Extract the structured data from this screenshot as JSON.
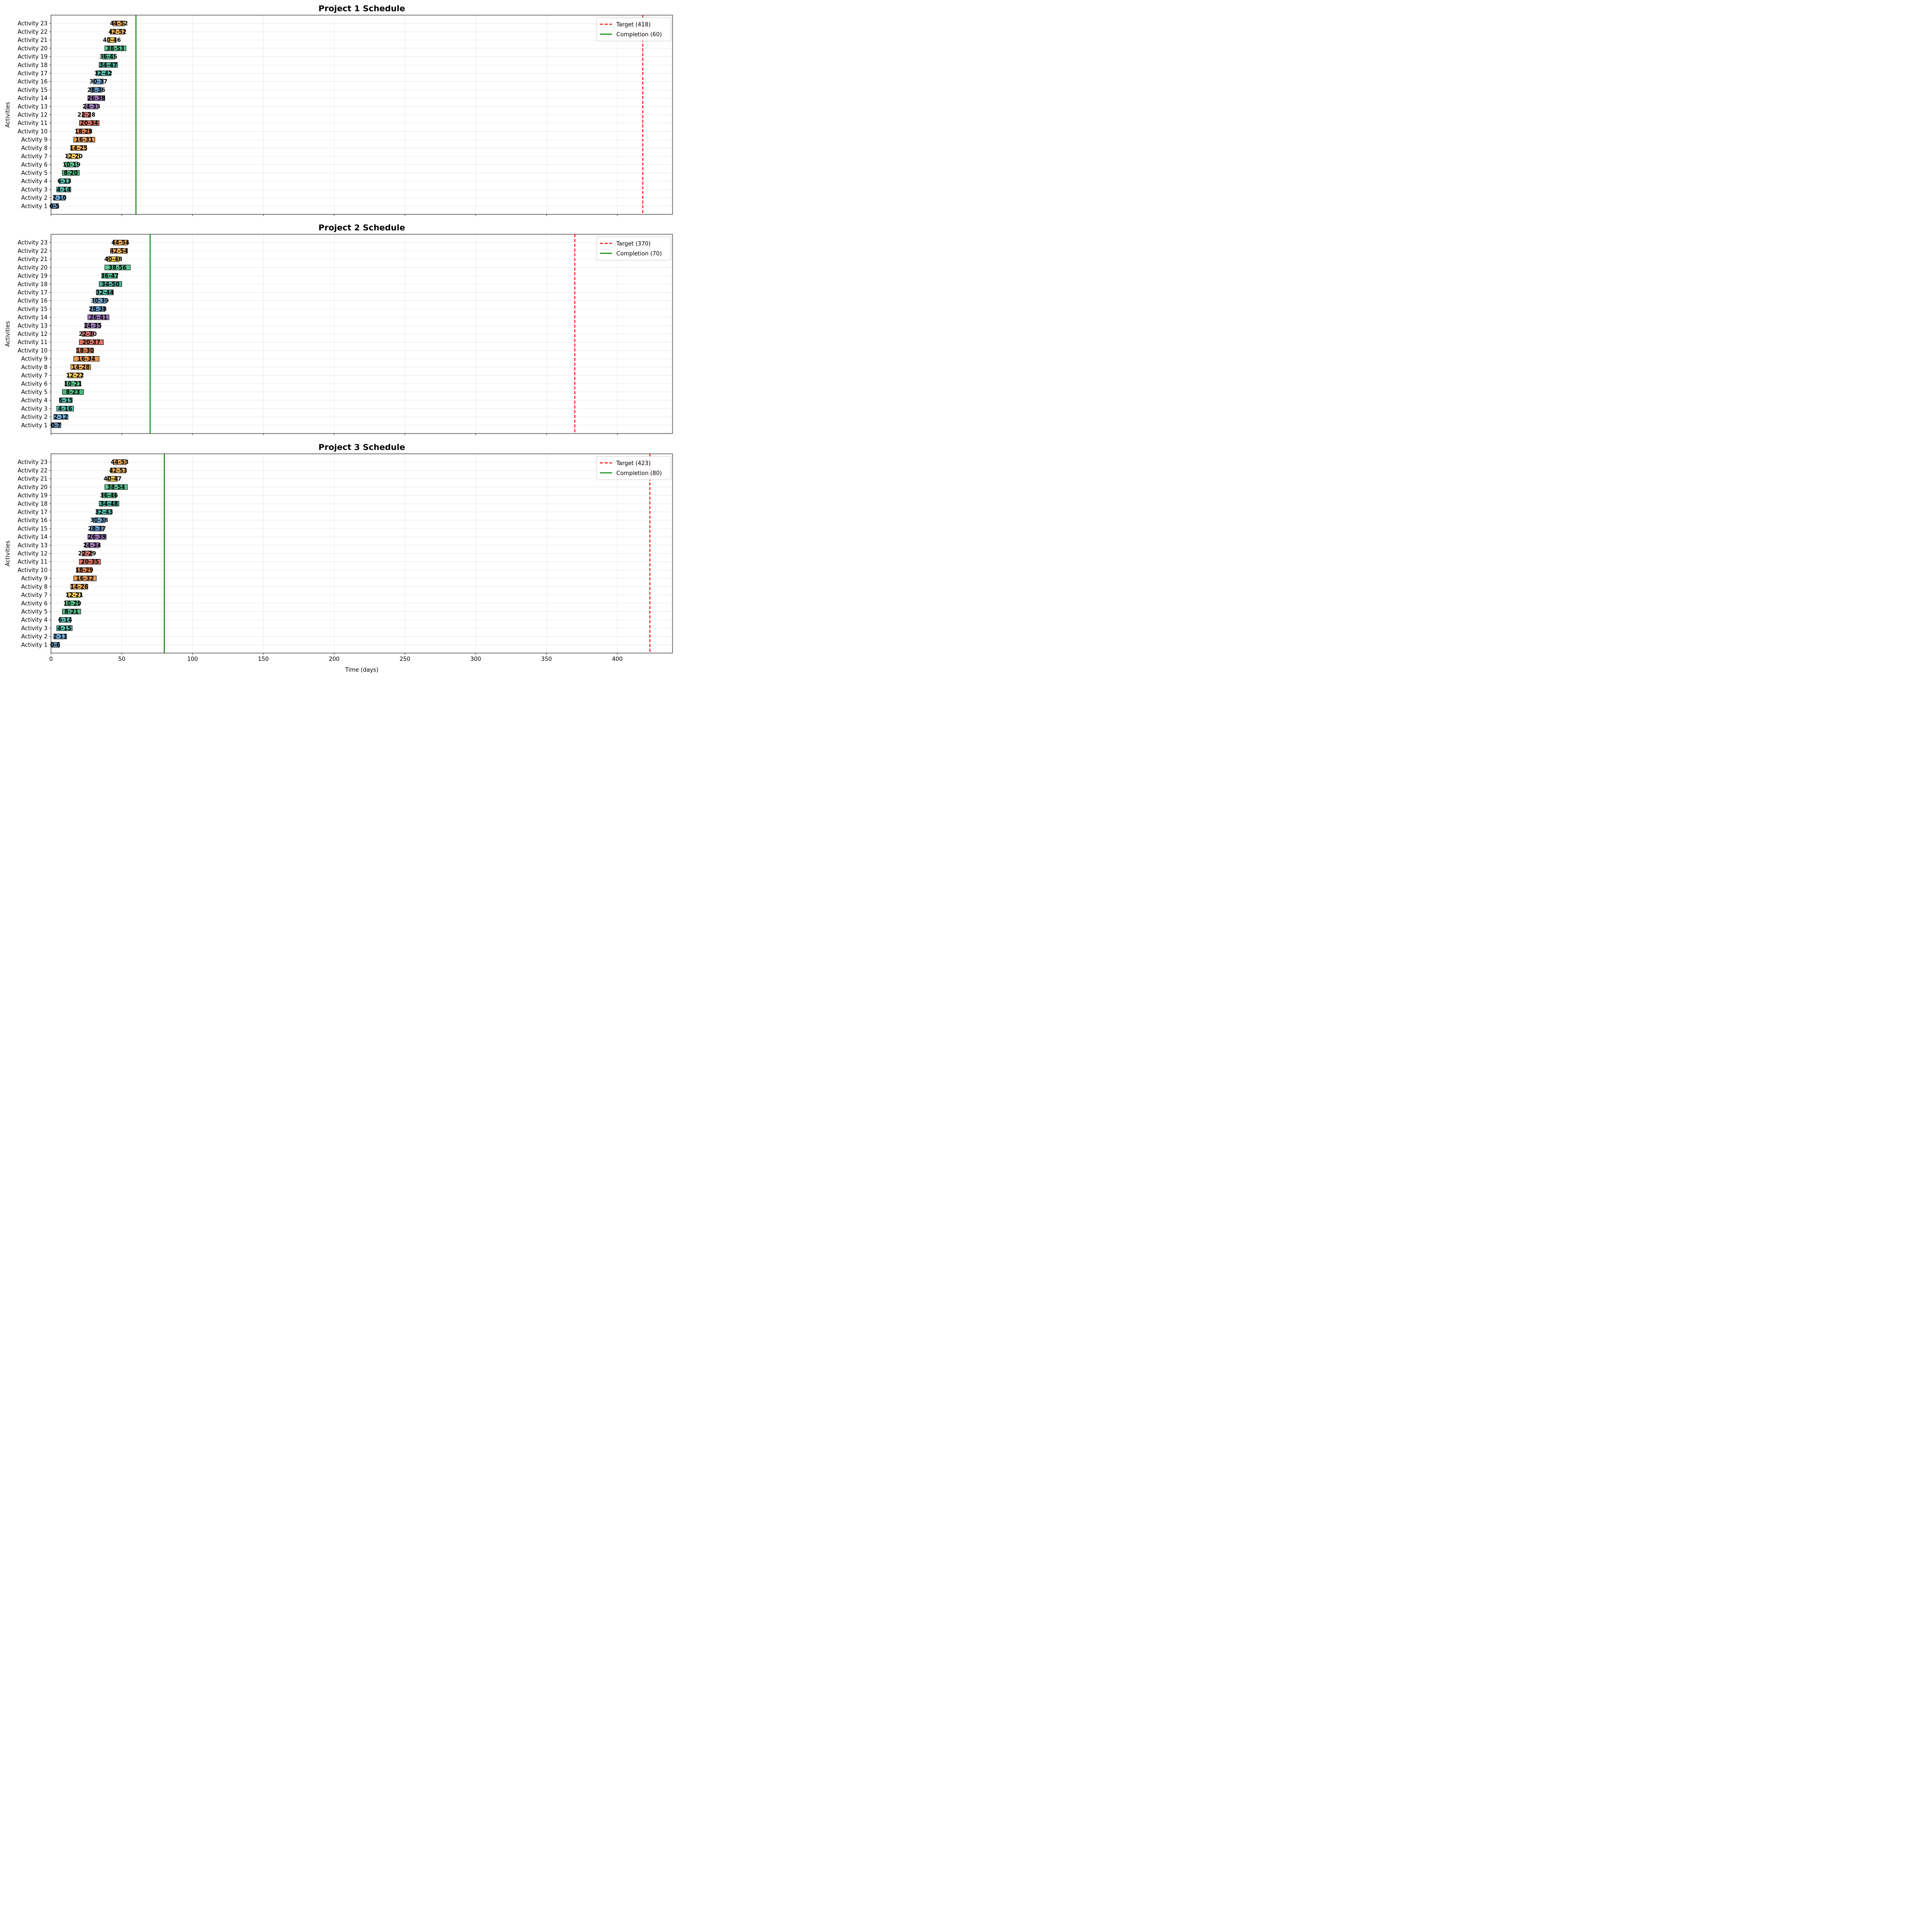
{
  "chart_data": {
    "type": "gantt",
    "xlabel": "Time (days)",
    "ylabel": "Activities",
    "xlim": [
      0,
      439
    ],
    "xticks": [
      0,
      50,
      100,
      150,
      200,
      250,
      300,
      350,
      400
    ],
    "grid": true,
    "legend_placement": "top-right",
    "activity_colors": [
      "#4e79a7",
      "#5aa1d8",
      "#36b59e",
      "#36b59e",
      "#2fae6b",
      "#3fbf80",
      "#f5c542",
      "#f0a13a",
      "#e98c3a",
      "#e0713a",
      "#d95b4b",
      "#cf5a5a",
      "#9b6bb8",
      "#8e5fb0",
      "#4e8fc8",
      "#5aa1d8",
      "#36b59e",
      "#2ea58a",
      "#32b37a",
      "#3fbf80",
      "#f0c030",
      "#f0a540",
      "#e89a3c"
    ],
    "legend_colors": {
      "target": "#ff0000",
      "completion": "#008000"
    },
    "projects": [
      {
        "title": "Project 1 Schedule",
        "target": 418,
        "completion": 60,
        "target_label": "Target (418)",
        "completion_label": "Completion (60)",
        "activities": [
          {
            "name": "Activity 1",
            "start": 0,
            "end": 5,
            "label": "0-5"
          },
          {
            "name": "Activity 2",
            "start": 2,
            "end": 10,
            "label": "2-10"
          },
          {
            "name": "Activity 3",
            "start": 4,
            "end": 14,
            "label": "4-14"
          },
          {
            "name": "Activity 4",
            "start": 6,
            "end": 13,
            "label": "6-13"
          },
          {
            "name": "Activity 5",
            "start": 8,
            "end": 20,
            "label": "8-20"
          },
          {
            "name": "Activity 6",
            "start": 10,
            "end": 19,
            "label": "10-19"
          },
          {
            "name": "Activity 7",
            "start": 12,
            "end": 20,
            "label": "12-20"
          },
          {
            "name": "Activity 8",
            "start": 14,
            "end": 25,
            "label": "14-25"
          },
          {
            "name": "Activity 9",
            "start": 16,
            "end": 31,
            "label": "16-31"
          },
          {
            "name": "Activity 10",
            "start": 18,
            "end": 28,
            "label": "18-28"
          },
          {
            "name": "Activity 11",
            "start": 20,
            "end": 34,
            "label": "20-34"
          },
          {
            "name": "Activity 12",
            "start": 22,
            "end": 28,
            "label": "22-28"
          },
          {
            "name": "Activity 13",
            "start": 24,
            "end": 33,
            "label": "24-33"
          },
          {
            "name": "Activity 14",
            "start": 26,
            "end": 38,
            "label": "26-38"
          },
          {
            "name": "Activity 15",
            "start": 28,
            "end": 36,
            "label": "28-36"
          },
          {
            "name": "Activity 16",
            "start": 30,
            "end": 37,
            "label": "30-37"
          },
          {
            "name": "Activity 17",
            "start": 32,
            "end": 42,
            "label": "32-42"
          },
          {
            "name": "Activity 18",
            "start": 34,
            "end": 47,
            "label": "34-47"
          },
          {
            "name": "Activity 19",
            "start": 36,
            "end": 45,
            "label": "36-45"
          },
          {
            "name": "Activity 20",
            "start": 38,
            "end": 53,
            "label": "38-53"
          },
          {
            "name": "Activity 21",
            "start": 40,
            "end": 46,
            "label": "40-46"
          },
          {
            "name": "Activity 22",
            "start": 42,
            "end": 52,
            "label": "42-52"
          },
          {
            "name": "Activity 23",
            "start": 44,
            "end": 52,
            "label": "44-52"
          }
        ]
      },
      {
        "title": "Project 2 Schedule",
        "target": 370,
        "completion": 70,
        "target_label": "Target (370)",
        "completion_label": "Completion (70)",
        "activities": [
          {
            "name": "Activity 1",
            "start": 0,
            "end": 7,
            "label": "0-7"
          },
          {
            "name": "Activity 2",
            "start": 2,
            "end": 12,
            "label": "2-12"
          },
          {
            "name": "Activity 3",
            "start": 4,
            "end": 16,
            "label": "4-16"
          },
          {
            "name": "Activity 4",
            "start": 6,
            "end": 15,
            "label": "6-15"
          },
          {
            "name": "Activity 5",
            "start": 8,
            "end": 23,
            "label": "8-23"
          },
          {
            "name": "Activity 6",
            "start": 10,
            "end": 21,
            "label": "10-21"
          },
          {
            "name": "Activity 7",
            "start": 12,
            "end": 22,
            "label": "12-22"
          },
          {
            "name": "Activity 8",
            "start": 14,
            "end": 28,
            "label": "14-28"
          },
          {
            "name": "Activity 9",
            "start": 16,
            "end": 34,
            "label": "16-34"
          },
          {
            "name": "Activity 10",
            "start": 18,
            "end": 30,
            "label": "18-30"
          },
          {
            "name": "Activity 11",
            "start": 20,
            "end": 37,
            "label": "20-37"
          },
          {
            "name": "Activity 12",
            "start": 22,
            "end": 30,
            "label": "22-30"
          },
          {
            "name": "Activity 13",
            "start": 24,
            "end": 35,
            "label": "24-35"
          },
          {
            "name": "Activity 14",
            "start": 26,
            "end": 41,
            "label": "26-41"
          },
          {
            "name": "Activity 15",
            "start": 28,
            "end": 38,
            "label": "28-38"
          },
          {
            "name": "Activity 16",
            "start": 30,
            "end": 39,
            "label": "30-39"
          },
          {
            "name": "Activity 17",
            "start": 32,
            "end": 44,
            "label": "32-44"
          },
          {
            "name": "Activity 18",
            "start": 34,
            "end": 50,
            "label": "34-50"
          },
          {
            "name": "Activity 19",
            "start": 36,
            "end": 47,
            "label": "36-47"
          },
          {
            "name": "Activity 20",
            "start": 38,
            "end": 56,
            "label": "38-56"
          },
          {
            "name": "Activity 21",
            "start": 40,
            "end": 48,
            "label": "40-48"
          },
          {
            "name": "Activity 22",
            "start": 42,
            "end": 54,
            "label": "42-54"
          },
          {
            "name": "Activity 23",
            "start": 44,
            "end": 54,
            "label": "44-54"
          }
        ]
      },
      {
        "title": "Project 3 Schedule",
        "target": 423,
        "completion": 80,
        "target_label": "Target (423)",
        "completion_label": "Completion (80)",
        "activities": [
          {
            "name": "Activity 1",
            "start": 0,
            "end": 6,
            "label": "0-6"
          },
          {
            "name": "Activity 2",
            "start": 2,
            "end": 11,
            "label": "2-11"
          },
          {
            "name": "Activity 3",
            "start": 4,
            "end": 15,
            "label": "4-15"
          },
          {
            "name": "Activity 4",
            "start": 6,
            "end": 14,
            "label": "6-14"
          },
          {
            "name": "Activity 5",
            "start": 8,
            "end": 21,
            "label": "8-21"
          },
          {
            "name": "Activity 6",
            "start": 10,
            "end": 20,
            "label": "10-20"
          },
          {
            "name": "Activity 7",
            "start": 12,
            "end": 21,
            "label": "12-21"
          },
          {
            "name": "Activity 8",
            "start": 14,
            "end": 26,
            "label": "14-26"
          },
          {
            "name": "Activity 9",
            "start": 16,
            "end": 32,
            "label": "16-32"
          },
          {
            "name": "Activity 10",
            "start": 18,
            "end": 29,
            "label": "18-29"
          },
          {
            "name": "Activity 11",
            "start": 20,
            "end": 35,
            "label": "20-35"
          },
          {
            "name": "Activity 12",
            "start": 22,
            "end": 29,
            "label": "22-29"
          },
          {
            "name": "Activity 13",
            "start": 24,
            "end": 34,
            "label": "24-34"
          },
          {
            "name": "Activity 14",
            "start": 26,
            "end": 39,
            "label": "26-39"
          },
          {
            "name": "Activity 15",
            "start": 28,
            "end": 37,
            "label": "28-37"
          },
          {
            "name": "Activity 16",
            "start": 30,
            "end": 38,
            "label": "30-38"
          },
          {
            "name": "Activity 17",
            "start": 32,
            "end": 43,
            "label": "32-43"
          },
          {
            "name": "Activity 18",
            "start": 34,
            "end": 48,
            "label": "34-48"
          },
          {
            "name": "Activity 19",
            "start": 36,
            "end": 46,
            "label": "36-46"
          },
          {
            "name": "Activity 20",
            "start": 38,
            "end": 54,
            "label": "38-54"
          },
          {
            "name": "Activity 21",
            "start": 40,
            "end": 47,
            "label": "40-47"
          },
          {
            "name": "Activity 22",
            "start": 42,
            "end": 53,
            "label": "42-53"
          },
          {
            "name": "Activity 23",
            "start": 44,
            "end": 53,
            "label": "44-53"
          }
        ]
      }
    ]
  }
}
